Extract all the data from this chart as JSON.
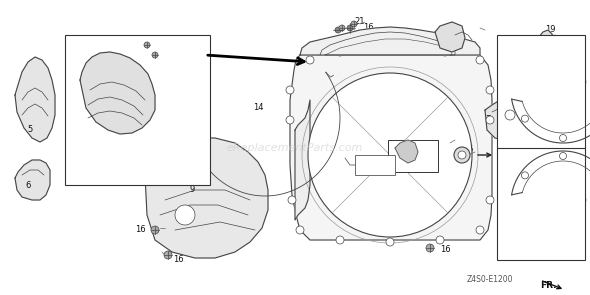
{
  "bg_color": "#ffffff",
  "diagram_color": "#555555",
  "label_color": "#111111",
  "watermark": "eReplacementParts.com",
  "watermark_color": "#cccccc",
  "part_code": "Z4S0-E1200",
  "fr_label": "FR.",
  "figsize": [
    5.9,
    2.95
  ],
  "dpi": 100,
  "line_color": "#444444",
  "thin_lw": 0.5,
  "med_lw": 0.8,
  "thick_lw": 1.2
}
